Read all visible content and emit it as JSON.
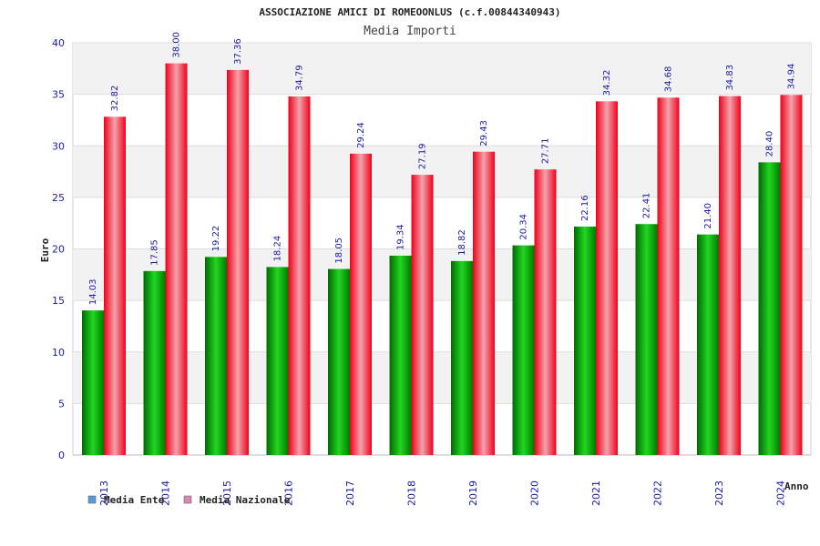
{
  "chart_data": {
    "type": "bar",
    "title": "ASSOCIAZIONE AMICI DI ROMEOONLUS (c.f.00844340943)",
    "subtitle": "Media Importi",
    "xlabel": "Anno",
    "ylabel": "Euro",
    "ylim": [
      0,
      40
    ],
    "yticks": [
      0,
      5,
      10,
      15,
      20,
      25,
      30,
      35,
      40
    ],
    "grid": true,
    "legend_position": "bottom-left",
    "categories": [
      "2013",
      "2014",
      "2015",
      "2016",
      "2017",
      "2018",
      "2019",
      "2020",
      "2021",
      "2022",
      "2023",
      "2024"
    ],
    "series": [
      {
        "name": "Media Ente",
        "color": "#00b000",
        "legend_color": "#5b9bd5",
        "values": [
          14.03,
          17.85,
          19.22,
          18.24,
          18.05,
          19.34,
          18.82,
          20.34,
          22.16,
          22.41,
          21.4,
          28.4
        ],
        "labels": [
          "14.03",
          "17.85",
          "19.22",
          "18.24",
          "18.05",
          "19.34",
          "18.82",
          "20.34",
          "22.16",
          "22.41",
          "21.40",
          "28.40"
        ]
      },
      {
        "name": "Media Nazionale",
        "color": "#ff0a1e",
        "legend_color": "#d987b3",
        "values": [
          32.82,
          38.0,
          37.36,
          34.79,
          29.24,
          27.19,
          29.43,
          27.71,
          34.32,
          34.68,
          34.83,
          34.94
        ],
        "labels": [
          "32.82",
          "38.00",
          "37.36",
          "34.79",
          "29.24",
          "27.19",
          "29.43",
          "27.71",
          "34.32",
          "34.68",
          "34.83",
          "34.94"
        ]
      }
    ]
  }
}
